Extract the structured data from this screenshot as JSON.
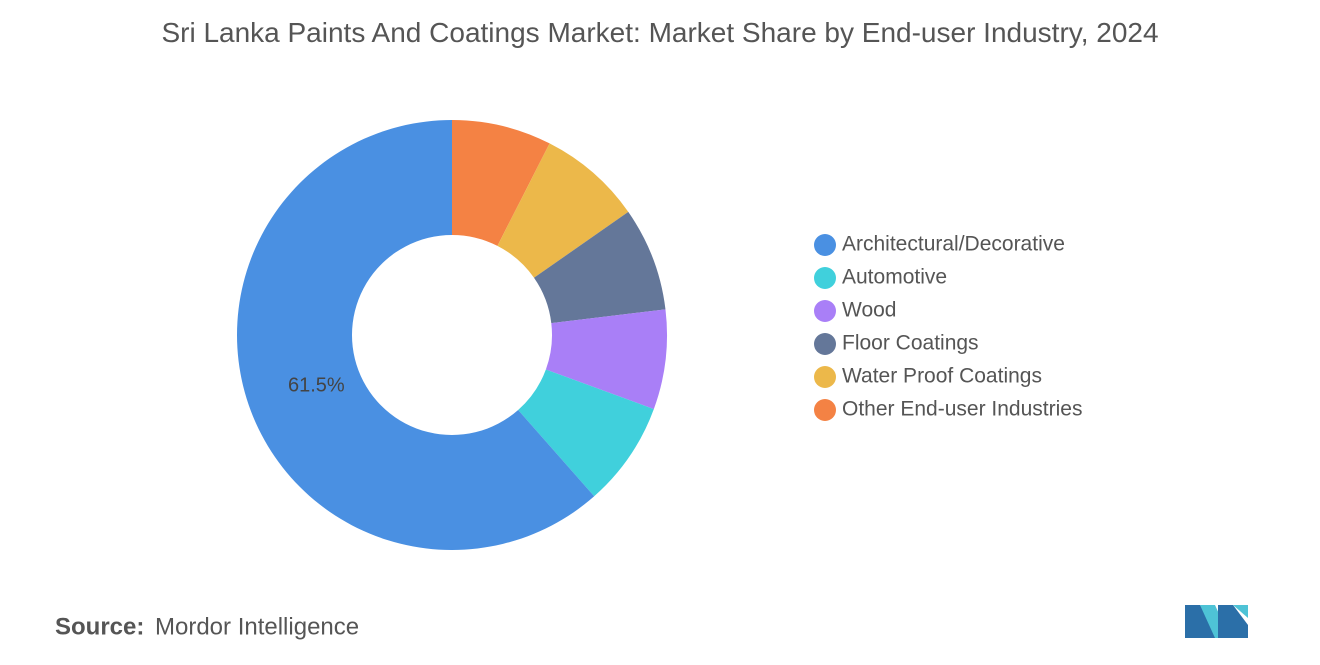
{
  "chart_data": {
    "type": "donut",
    "title": "Sri Lanka Paints And Coatings Market: Market Share by End-user Industry, 2024",
    "series": [
      {
        "name": "Architectural/Decorative",
        "color": "#4a90e2",
        "values": [
          61.5
        ],
        "value_labels": [
          "61.5%"
        ]
      },
      {
        "name": "Automotive",
        "color": "#40d0dc",
        "values": [
          7.9
        ],
        "value_labels": [
          null
        ]
      },
      {
        "name": "Wood",
        "color": "#a97ff7",
        "values": [
          7.5
        ],
        "value_labels": [
          null
        ]
      },
      {
        "name": "Floor Coatings",
        "color": "#647799",
        "values": [
          7.8
        ],
        "value_labels": [
          null
        ]
      },
      {
        "name": "Water Proof Coatings",
        "color": "#ecb84a",
        "values": [
          7.8
        ],
        "value_labels": [
          null
        ]
      },
      {
        "name": "Other End-user Industries",
        "color": "#f48244",
        "values": [
          7.5
        ],
        "value_labels": [
          null
        ]
      }
    ]
  },
  "source": {
    "label": "Source:",
    "name": "Mordor Intelligence"
  }
}
